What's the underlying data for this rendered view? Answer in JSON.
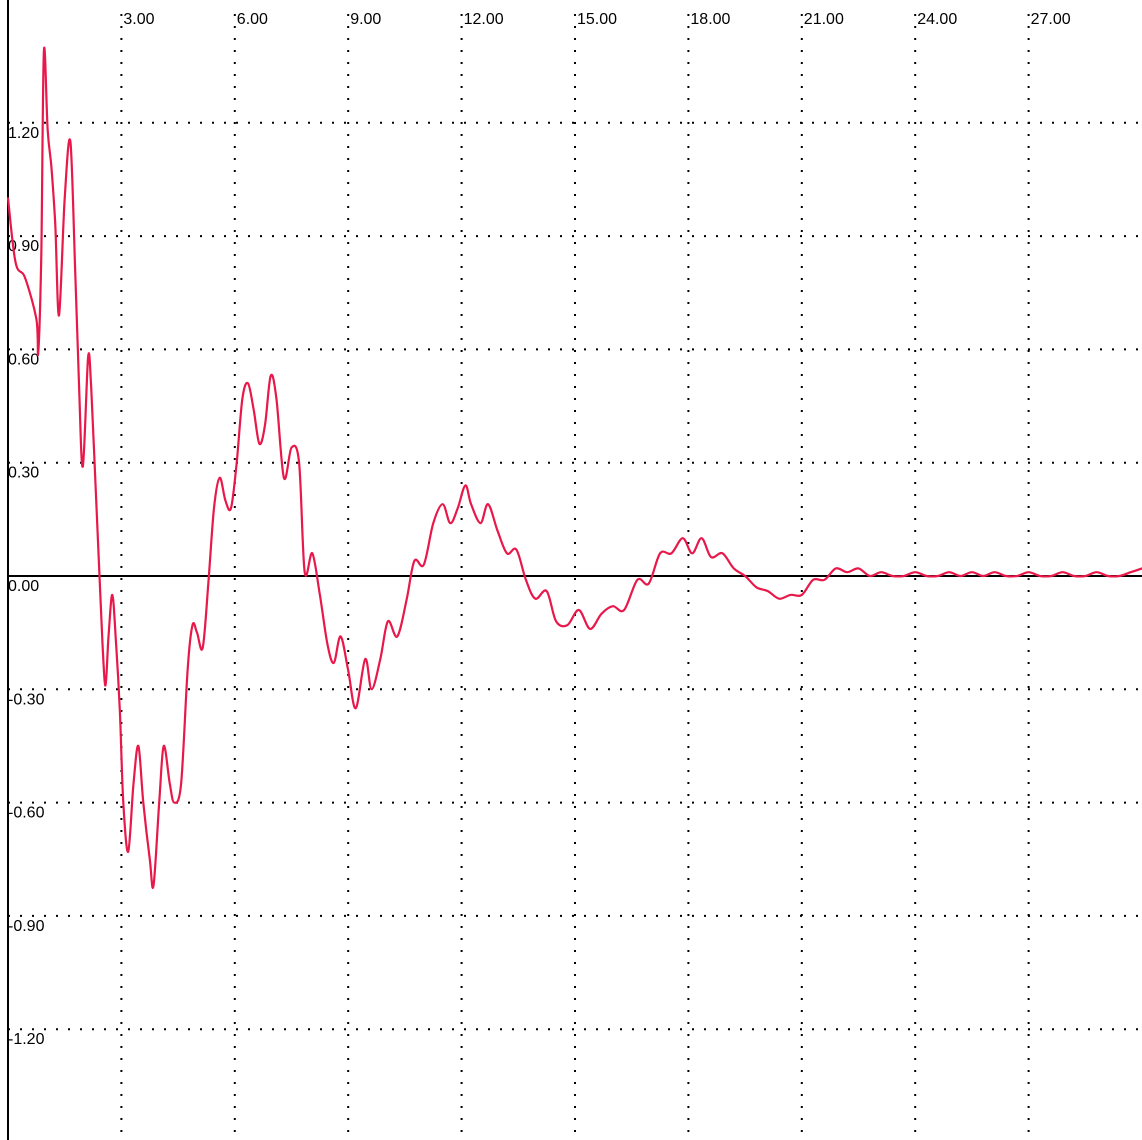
{
  "chart_data": {
    "type": "line",
    "title": "",
    "xlabel": "",
    "ylabel": "",
    "xlim": [
      0,
      30
    ],
    "ylim": [
      -1.5,
      1.4
    ],
    "grid": true,
    "x_ticks": [
      3,
      6,
      9,
      12,
      15,
      18,
      21,
      24,
      27
    ],
    "x_tick_labels": [
      "3.00",
      "6.00",
      "9.00",
      "12.00",
      "15.00",
      "18.00",
      "21.00",
      "24.00",
      "27.00"
    ],
    "y_ticks": [
      1.2,
      0.9,
      0.6,
      0.3,
      0.0,
      -0.3,
      -0.6,
      -0.9,
      -1.2
    ],
    "y_tick_labels": [
      "1.20",
      "0.90",
      "0.60",
      "0.30",
      "0.00",
      "-0.30",
      "-0.60",
      "-0.90",
      "-1.20"
    ],
    "line_color": "#e8184a",
    "axis_color": "#000000",
    "series": [
      {
        "x": [
          0.0,
          0.2,
          0.45,
          0.75,
          0.8,
          0.88,
          0.95,
          1.05,
          1.15,
          1.25,
          1.35,
          1.5,
          1.65,
          1.78,
          1.88,
          1.98,
          2.12,
          2.2,
          2.3,
          2.42,
          2.5,
          2.58,
          2.66,
          2.76,
          2.86,
          2.96,
          3.05,
          3.18,
          3.32,
          3.45,
          3.58,
          3.75,
          3.85,
          4.0,
          4.12,
          4.28,
          4.4,
          4.58,
          4.75,
          4.88,
          5.0,
          5.15,
          5.3,
          5.45,
          5.6,
          5.75,
          5.9,
          6.05,
          6.2,
          6.35,
          6.5,
          6.65,
          6.8,
          6.95,
          7.1,
          7.3,
          7.5,
          7.7,
          7.85,
          8.05,
          8.25,
          8.45,
          8.62,
          8.8,
          9.0,
          9.2,
          9.45,
          9.62,
          9.85,
          10.05,
          10.3,
          10.55,
          10.75,
          11.0,
          11.25,
          11.5,
          11.7,
          11.9,
          12.1,
          12.25,
          12.5,
          12.7,
          12.95,
          13.2,
          13.45,
          13.7,
          13.95,
          14.25,
          14.5,
          14.8,
          15.1,
          15.4,
          15.7,
          16.0,
          16.3,
          16.65,
          16.95,
          17.25,
          17.55,
          17.85,
          18.1,
          18.35,
          18.6,
          18.9,
          19.2,
          19.5,
          19.8,
          20.1,
          20.4,
          20.7,
          21.0,
          21.3,
          21.6,
          21.9,
          22.2,
          22.5,
          22.8,
          23.1,
          23.4,
          23.7,
          24.0,
          24.3,
          24.6,
          24.9,
          25.2,
          25.5,
          25.8,
          26.1,
          26.4,
          26.7,
          27.0,
          27.3,
          27.6,
          27.9,
          28.2,
          28.5,
          28.8,
          29.1,
          29.4,
          29.7,
          30.0
        ],
        "y": [
          1.0,
          0.83,
          0.79,
          0.68,
          0.59,
          0.85,
          1.39,
          1.18,
          1.08,
          0.93,
          0.69,
          1.0,
          1.15,
          0.8,
          0.5,
          0.29,
          0.58,
          0.5,
          0.28,
          0.0,
          -0.18,
          -0.29,
          -0.16,
          -0.05,
          -0.18,
          -0.36,
          -0.6,
          -0.73,
          -0.55,
          -0.45,
          -0.6,
          -0.75,
          -0.82,
          -0.6,
          -0.45,
          -0.55,
          -0.6,
          -0.55,
          -0.25,
          -0.13,
          -0.15,
          -0.19,
          -0.02,
          0.18,
          0.26,
          0.2,
          0.18,
          0.3,
          0.47,
          0.51,
          0.44,
          0.35,
          0.4,
          0.53,
          0.47,
          0.26,
          0.34,
          0.3,
          0.01,
          0.06,
          -0.05,
          -0.18,
          -0.23,
          -0.16,
          -0.25,
          -0.35,
          -0.22,
          -0.3,
          -0.22,
          -0.12,
          -0.16,
          -0.06,
          0.04,
          0.03,
          0.14,
          0.19,
          0.14,
          0.18,
          0.24,
          0.19,
          0.14,
          0.19,
          0.12,
          0.06,
          0.07,
          -0.01,
          -0.06,
          -0.04,
          -0.12,
          -0.13,
          -0.09,
          -0.14,
          -0.1,
          -0.08,
          -0.09,
          -0.01,
          -0.02,
          0.06,
          0.06,
          0.1,
          0.06,
          0.1,
          0.05,
          0.06,
          0.02,
          0.0,
          -0.03,
          -0.04,
          -0.06,
          -0.05,
          -0.05,
          -0.01,
          -0.01,
          0.02,
          0.01,
          0.02,
          0.0,
          0.01,
          0.0,
          0.0,
          0.01,
          0.0,
          0.0,
          0.01,
          0.0,
          0.01,
          0.0,
          0.01,
          0.0,
          0.0,
          0.01,
          0.0,
          0.0,
          0.01,
          0.0,
          0.0,
          0.01,
          0.0,
          0.0,
          0.01,
          0.02
        ]
      }
    ]
  }
}
